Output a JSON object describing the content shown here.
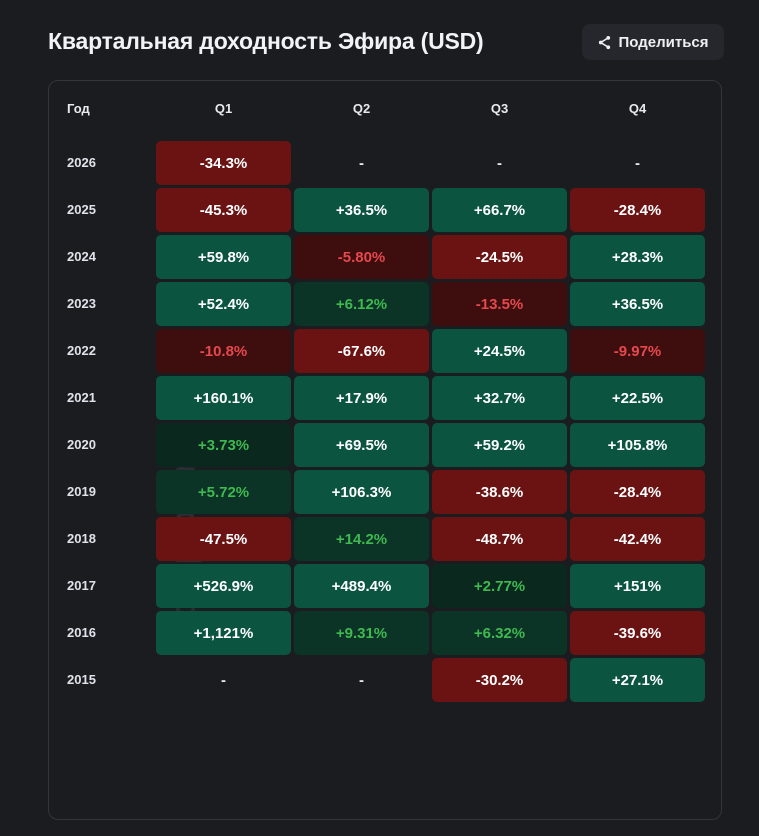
{
  "title": "Квартальная доходность Эфира (USD)",
  "share": {
    "label": "Поделиться",
    "icon": "share-icon"
  },
  "watermark": "cryptorank",
  "colors": {
    "strong_red": "#6a1312",
    "weak_red": "#3e0e0e",
    "faint_red": "#2e0d0d",
    "strong_green": "#0b5540",
    "weak_green": "#0b3326",
    "faint_green": "#0a281d",
    "red_text": "#e5484d",
    "green_text": "#3fb950"
  },
  "table": {
    "headers": [
      "Год",
      "Q1",
      "Q2",
      "Q3",
      "Q4"
    ],
    "rows": [
      {
        "year": "2026",
        "values": [
          "-34.3%",
          "-",
          "-",
          "-"
        ]
      },
      {
        "year": "2025",
        "values": [
          "-45.3%",
          "+36.5%",
          "+66.7%",
          "-28.4%"
        ]
      },
      {
        "year": "2024",
        "values": [
          "+59.8%",
          "-5.80%",
          "-24.5%",
          "+28.3%"
        ]
      },
      {
        "year": "2023",
        "values": [
          "+52.4%",
          "+6.12%",
          "-13.5%",
          "+36.5%"
        ]
      },
      {
        "year": "2022",
        "values": [
          "-10.8%",
          "-67.6%",
          "+24.5%",
          "-9.97%"
        ]
      },
      {
        "year": "2021",
        "values": [
          "+160.1%",
          "+17.9%",
          "+32.7%",
          "+22.5%"
        ]
      },
      {
        "year": "2020",
        "values": [
          "+3.73%",
          "+69.5%",
          "+59.2%",
          "+105.8%"
        ]
      },
      {
        "year": "2019",
        "values": [
          "+5.72%",
          "+106.3%",
          "-38.6%",
          "-28.4%"
        ]
      },
      {
        "year": "2018",
        "values": [
          "-47.5%",
          "+14.2%",
          "-48.7%",
          "-42.4%"
        ]
      },
      {
        "year": "2017",
        "values": [
          "+526.9%",
          "+489.4%",
          "+2.77%",
          "+151%"
        ]
      },
      {
        "year": "2016",
        "values": [
          "+1,121%",
          "+9.31%",
          "+6.32%",
          "-39.6%"
        ]
      },
      {
        "year": "2015",
        "values": [
          "-",
          "-",
          "-30.2%",
          "+27.1%"
        ]
      }
    ]
  }
}
